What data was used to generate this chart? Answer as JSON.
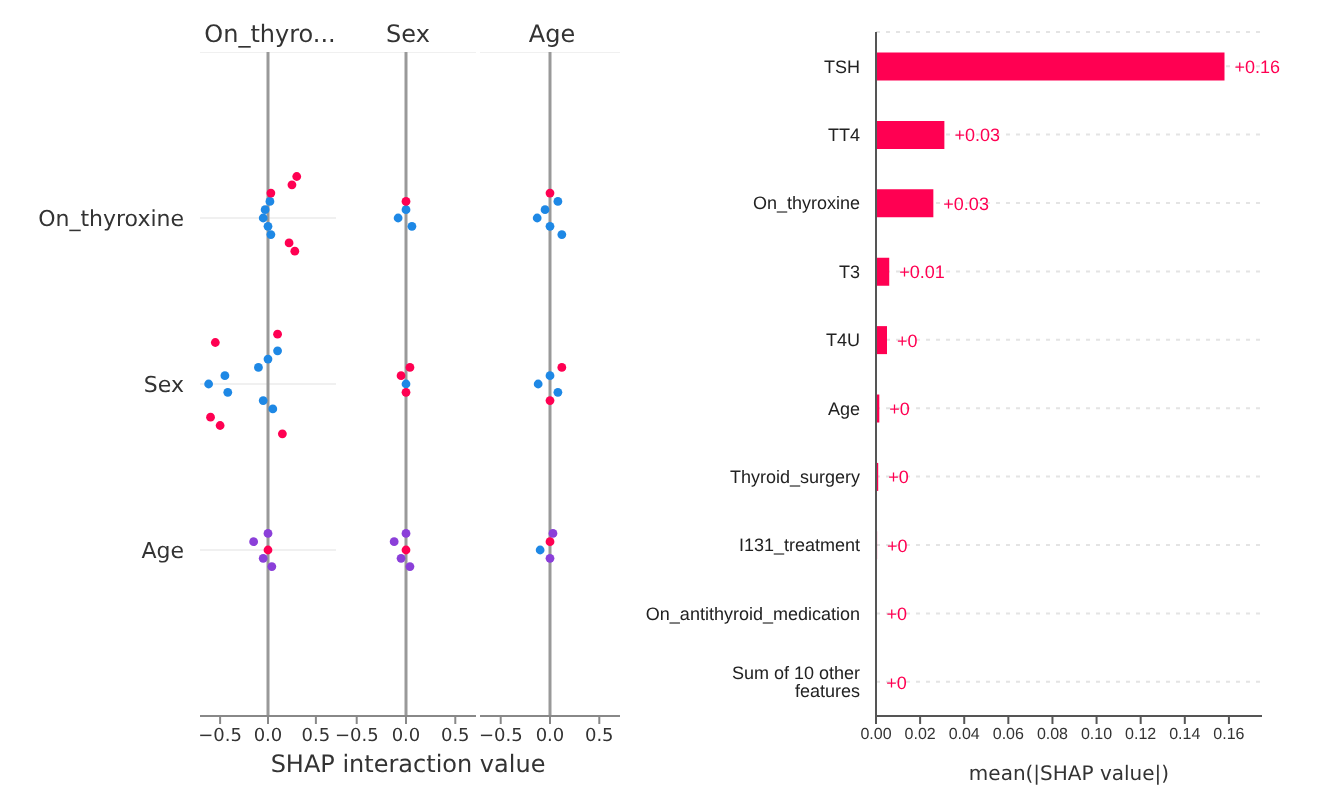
{
  "chart_data": [
    {
      "type": "scatter",
      "orientation": "horizontal",
      "title": "On_thyro...",
      "categories": [
        "On_thyroxine",
        "Sex",
        "Age"
      ],
      "marker": "circle",
      "grid": "y",
      "xlim": [
        -0.71,
        0.71
      ],
      "xticks": [
        {
          "value": -0.5,
          "label": "−0.5"
        },
        {
          "value": 0,
          "label": "0.0"
        },
        {
          "value": 0.5,
          "label": "0.5"
        }
      ],
      "ref_lines": [
        {
          "axis": "x",
          "value": 0,
          "color": "#999999"
        }
      ],
      "series": [
        {
          "type": "scatter",
          "color": "#1e88e5",
          "x": [
            "On_thyroxine",
            "On_thyroxine",
            "On_thyroxine",
            "On_thyroxine",
            "On_thyroxine",
            "Sex",
            "Sex",
            "Sex",
            "Sex",
            "Sex",
            "Sex",
            "Sex",
            "Sex"
          ],
          "values": [
            -0.05,
            -0.03,
            0,
            0.02,
            0.03,
            -0.62,
            -0.45,
            -0.42,
            -0.1,
            -0.05,
            0,
            0.05,
            0.1
          ]
        },
        {
          "type": "scatter",
          "color": "#ff0052",
          "x": [
            "On_thyroxine",
            "On_thyroxine",
            "On_thyroxine",
            "On_thyroxine",
            "On_thyroxine",
            "Sex",
            "Sex",
            "Sex",
            "Sex",
            "Sex",
            "Age"
          ],
          "values": [
            0.03,
            0.22,
            0.25,
            0.28,
            0.3,
            -0.6,
            -0.55,
            -0.5,
            0.1,
            0.15,
            0
          ]
        },
        {
          "type": "scatter",
          "color": "#8b3fd9",
          "x": [
            "Age",
            "Age",
            "Age",
            "Age"
          ],
          "values": [
            -0.15,
            -0.05,
            0,
            0.04
          ]
        }
      ]
    },
    {
      "type": "scatter",
      "orientation": "horizontal",
      "title": "Sex",
      "xlabel": "SHAP interaction value",
      "categories": [
        "On_thyroxine",
        "Sex",
        "Age"
      ],
      "marker": "circle",
      "grid": "y",
      "tick_labels": "x",
      "xlim": [
        -0.71,
        0.71
      ],
      "xticks": [
        {
          "value": -0.5,
          "label": "−0.5"
        },
        {
          "value": 0,
          "label": "0.0"
        },
        {
          "value": 0.5,
          "label": "0.5"
        }
      ],
      "ref_lines": [
        {
          "axis": "x",
          "value": 0,
          "color": "#999999"
        }
      ],
      "series": [
        {
          "type": "scatter",
          "color": "#1e88e5",
          "x": [
            "On_thyroxine",
            "On_thyroxine",
            "On_thyroxine",
            "Sex"
          ],
          "values": [
            -0.08,
            0,
            0.06,
            0
          ]
        },
        {
          "type": "scatter",
          "color": "#ff0052",
          "x": [
            "On_thyroxine",
            "Sex",
            "Sex",
            "Sex",
            "Age"
          ],
          "values": [
            0,
            -0.05,
            0,
            0.04,
            0
          ]
        },
        {
          "type": "scatter",
          "color": "#8b3fd9",
          "x": [
            "Age",
            "Age",
            "Age",
            "Age"
          ],
          "values": [
            -0.12,
            -0.05,
            0,
            0.04
          ]
        }
      ]
    },
    {
      "type": "scatter",
      "orientation": "horizontal",
      "title": "Age",
      "categories": [
        "On_thyroxine",
        "Sex",
        "Age"
      ],
      "marker": "circle",
      "grid": "y",
      "tick_labels": "x",
      "xlim": [
        -0.71,
        0.71
      ],
      "xticks": [
        {
          "value": -0.5,
          "label": "−0.5"
        },
        {
          "value": 0,
          "label": "0.0"
        },
        {
          "value": 0.5,
          "label": "0.5"
        }
      ],
      "ref_lines": [
        {
          "axis": "x",
          "value": 0,
          "color": "#999999"
        }
      ],
      "series": [
        {
          "type": "scatter",
          "color": "#1e88e5",
          "x": [
            "On_thyroxine",
            "On_thyroxine",
            "On_thyroxine",
            "On_thyroxine",
            "On_thyroxine",
            "Sex",
            "Sex",
            "Sex",
            "Age"
          ],
          "values": [
            -0.13,
            -0.05,
            0,
            0.08,
            0.12,
            -0.12,
            0,
            0.08,
            -0.1
          ]
        },
        {
          "type": "scatter",
          "color": "#ff0052",
          "x": [
            "On_thyroxine",
            "Sex",
            "Sex",
            "Age"
          ],
          "values": [
            0,
            0.12,
            0,
            0
          ]
        },
        {
          "type": "scatter",
          "color": "#8b3fd9",
          "x": [
            "Age",
            "Age"
          ],
          "values": [
            0,
            0.03
          ]
        }
      ]
    },
    {
      "type": "bar",
      "orientation": "horizontal",
      "xlabel": "mean(|SHAP value|)",
      "color": "#ff0052",
      "grid": "y",
      "categories": [
        "TSH",
        "TT4",
        "On_thyroxine",
        "T3",
        "T4U",
        "Age",
        "Thyroid_surgery",
        "I131_treatment",
        "On_antithyroid_medication",
        "Sum of 10 other features"
      ],
      "values": [
        0.158,
        0.031,
        0.026,
        0.006,
        0.005,
        0.0015,
        0.001,
        0.0005,
        0.0002,
        0.0001
      ],
      "value_labels": [
        "+0.16",
        "+0.03",
        "+0.03",
        "+0.01",
        "+0",
        "+0",
        "+0",
        "+0",
        "+0",
        "+0"
      ],
      "xlim": [
        0,
        0.175
      ],
      "xticks": [
        {
          "value": 0,
          "label": "0.00"
        },
        {
          "value": 0.02,
          "label": "0.02"
        },
        {
          "value": 0.04,
          "label": "0.04"
        },
        {
          "value": 0.06,
          "label": "0.06"
        },
        {
          "value": 0.08,
          "label": "0.08"
        },
        {
          "value": 0.1,
          "label": "0.10"
        },
        {
          "value": 0.12,
          "label": "0.12"
        },
        {
          "value": 0.14,
          "label": "0.14"
        },
        {
          "value": 0.16,
          "label": "0.16"
        }
      ]
    }
  ]
}
